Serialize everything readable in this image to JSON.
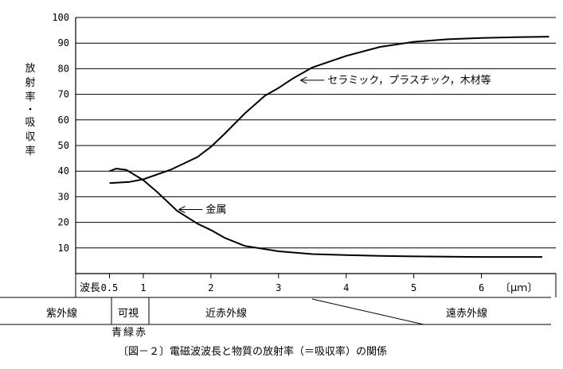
{
  "chart_data": {
    "type": "line",
    "title": "",
    "caption": "〔図－２〕電磁波波長と物質の放射率（＝吸収率）の関係",
    "ylabel": "放射率・吸収率",
    "xlabel_left": "波長",
    "x_unit": "〔μｍ〕",
    "ylim": [
      0,
      100
    ],
    "xlim": [
      0,
      7.1
    ],
    "y_ticks": [
      10,
      20,
      30,
      40,
      50,
      60,
      70,
      80,
      90,
      100
    ],
    "x_ticks": [
      {
        "value": 0.5,
        "label": "0.5"
      },
      {
        "value": 1,
        "label": "1"
      },
      {
        "value": 2,
        "label": "2"
      },
      {
        "value": 3,
        "label": "3"
      },
      {
        "value": 4,
        "label": "4"
      },
      {
        "value": 5,
        "label": "5"
      },
      {
        "value": 6,
        "label": "6"
      }
    ],
    "grid": true,
    "series": [
      {
        "name": "セラミック，プラスチック，木材等",
        "points": [
          [
            0.5,
            35.3
          ],
          [
            0.8,
            35.8
          ],
          [
            1.0,
            36.8
          ],
          [
            1.4,
            40.5
          ],
          [
            1.8,
            45.5
          ],
          [
            2.0,
            49.5
          ],
          [
            2.2,
            54.5
          ],
          [
            2.5,
            62.5
          ],
          [
            2.8,
            69.5
          ],
          [
            3.0,
            72.5
          ],
          [
            3.2,
            76
          ],
          [
            3.5,
            80.5
          ],
          [
            4.0,
            85
          ],
          [
            4.5,
            88.5
          ],
          [
            5.0,
            90.5
          ],
          [
            5.5,
            91.5
          ],
          [
            6.0,
            92
          ],
          [
            6.5,
            92.3
          ],
          [
            7.0,
            92.5
          ]
        ]
      },
      {
        "name": "金属",
        "points": [
          [
            0.5,
            40
          ],
          [
            0.6,
            41
          ],
          [
            0.75,
            40.5
          ],
          [
            1.0,
            36.5
          ],
          [
            1.2,
            32
          ],
          [
            1.5,
            24.5
          ],
          [
            1.8,
            19.5
          ],
          [
            2.0,
            17
          ],
          [
            2.2,
            14
          ],
          [
            2.5,
            10.8
          ],
          [
            3.0,
            8.7
          ],
          [
            3.5,
            7.6
          ],
          [
            4.0,
            7.2
          ],
          [
            4.5,
            6.9
          ],
          [
            5.0,
            6.7
          ],
          [
            5.5,
            6.6
          ],
          [
            6.0,
            6.5
          ],
          [
            6.5,
            6.5
          ],
          [
            6.9,
            6.5
          ]
        ]
      }
    ],
    "annotations": [
      {
        "text": "セラミック，プラスチック，木材等",
        "x": 3.3,
        "y": 75.5
      },
      {
        "text": "金属",
        "x": 1.5,
        "y": 25
      }
    ],
    "bands": [
      {
        "label": "紫外線"
      },
      {
        "label": "可視"
      },
      {
        "label": "近赤外線"
      },
      {
        "label": "遠赤外線"
      }
    ],
    "visible_sub": [
      "青",
      "緑",
      "赤"
    ]
  }
}
